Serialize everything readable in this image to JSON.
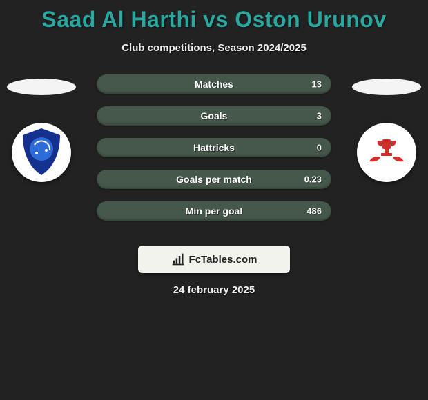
{
  "title": {
    "text": "Saad Al Harthi vs Oston Urunov",
    "color": "#2aa8a0",
    "fontsize": 32
  },
  "subtitle": {
    "text": "Club competitions, Season 2024/2025",
    "color": "#eeeeee",
    "fontsize": 15
  },
  "background_color": "#222222",
  "player_left": {
    "oval_color": "#f4f4f4",
    "badge_bg": "#ffffff",
    "badge_label": "AL HILAL",
    "badge_primary": "#14318f",
    "badge_accent": "#2d6cd6"
  },
  "player_right": {
    "oval_color": "#f4f4f4",
    "badge_bg": "#ffffff",
    "badge_label": "",
    "badge_primary": "#d0302a",
    "badge_accent": "#d0302a"
  },
  "stats": {
    "pill_bg": "#46584b",
    "fill_color": "#3d4c41",
    "label_color": "#ffffff",
    "value_color": "#ffffff",
    "label_fontsize": 14,
    "value_fontsize": 13,
    "rows": [
      {
        "label": "Matches",
        "value_text": "13",
        "fill_pct": 0
      },
      {
        "label": "Goals",
        "value_text": "3",
        "fill_pct": 0
      },
      {
        "label": "Hattricks",
        "value_text": "0",
        "fill_pct": 0
      },
      {
        "label": "Goals per match",
        "value_text": "0.23",
        "fill_pct": 0
      },
      {
        "label": "Min per goal",
        "value_text": "486",
        "fill_pct": 0
      }
    ]
  },
  "brand": {
    "text": "FcTables.com",
    "box_bg": "#f3f3ee",
    "text_color": "#222222",
    "icon_color": "#222222"
  },
  "date": {
    "text": "24 february 2025",
    "color": "#eeeeee",
    "fontsize": 15
  }
}
